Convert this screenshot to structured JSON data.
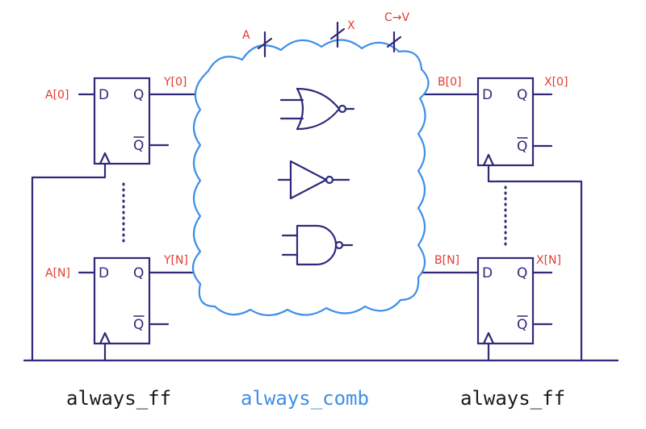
{
  "colors": {
    "ink": "#2f2a7a",
    "signal": "#e23b2e",
    "comb": "#3f8ee8",
    "caption": "#1a1a1a"
  },
  "pins": {
    "d": "D",
    "q": "Q",
    "qbar": "Q"
  },
  "left_ffs": [
    {
      "input": "A[0]",
      "output": "Y[0]"
    },
    {
      "input": "A[N]",
      "output": "Y[N]"
    }
  ],
  "right_ffs": [
    {
      "input": "B[0]",
      "output": "X[0]"
    },
    {
      "input": "B[N]",
      "output": "X[N]"
    }
  ],
  "top_buses": [
    "A",
    "X",
    "C→V"
  ],
  "gates": [
    "nor-gate",
    "not-gate",
    "nand-gate"
  ],
  "captions": {
    "left": "always_ff",
    "middle": "always_comb",
    "right": "always_ff"
  }
}
